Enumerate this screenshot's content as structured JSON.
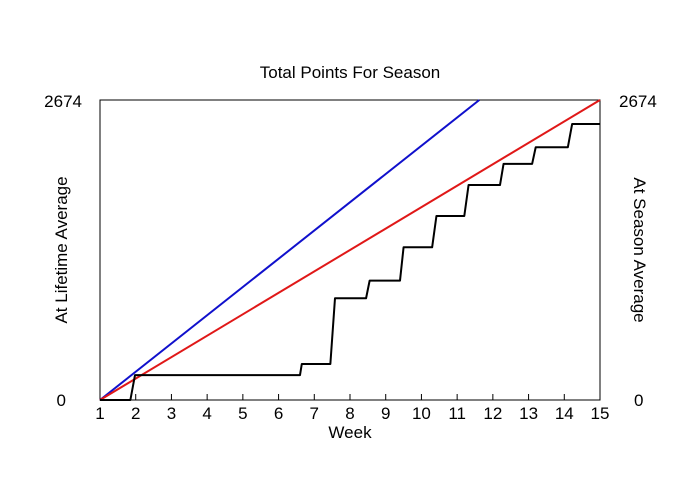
{
  "chart_data": {
    "type": "line",
    "title": "Total Points For Season",
    "xlabel": "Week",
    "ylabel_left": "At Lifetime Average",
    "ylabel_right": "At Season Average",
    "xlim": [
      1,
      15
    ],
    "ylim": [
      0,
      2674
    ],
    "x_ticks": [
      "1",
      "2",
      "3",
      "4",
      "5",
      "6",
      "7",
      "8",
      "9",
      "10",
      "11",
      "12",
      "13",
      "14",
      "15"
    ],
    "y_tick_labels": {
      "left_min": "0",
      "left_max": "2674",
      "right_min": "0",
      "right_max": "2674"
    },
    "colors": {
      "lifetime": "#1010cc",
      "season": "#e01818",
      "actual": "#000000",
      "axes": "#000000"
    },
    "series": [
      {
        "key": "lifetime",
        "points": [
          [
            1,
            0
          ],
          [
            11.62,
            2674
          ]
        ]
      },
      {
        "key": "season",
        "points": [
          [
            1,
            0
          ],
          [
            15,
            2674
          ]
        ]
      },
      {
        "key": "actual",
        "points": [
          [
            1,
            0
          ],
          [
            1.85,
            0
          ],
          [
            1.98,
            222
          ],
          [
            6.6,
            222
          ],
          [
            6.65,
            321
          ],
          [
            7.45,
            321
          ],
          [
            7.58,
            907
          ],
          [
            8.45,
            907
          ],
          [
            8.55,
            1064
          ],
          [
            9.4,
            1064
          ],
          [
            9.5,
            1361
          ],
          [
            10.3,
            1361
          ],
          [
            10.42,
            1640
          ],
          [
            11.2,
            1640
          ],
          [
            11.32,
            1916
          ],
          [
            12.2,
            1916
          ],
          [
            12.3,
            2105
          ],
          [
            13.1,
            2105
          ],
          [
            13.2,
            2253
          ],
          [
            14.1,
            2253
          ],
          [
            14.22,
            2460
          ],
          [
            15,
            2460
          ]
        ]
      }
    ]
  }
}
